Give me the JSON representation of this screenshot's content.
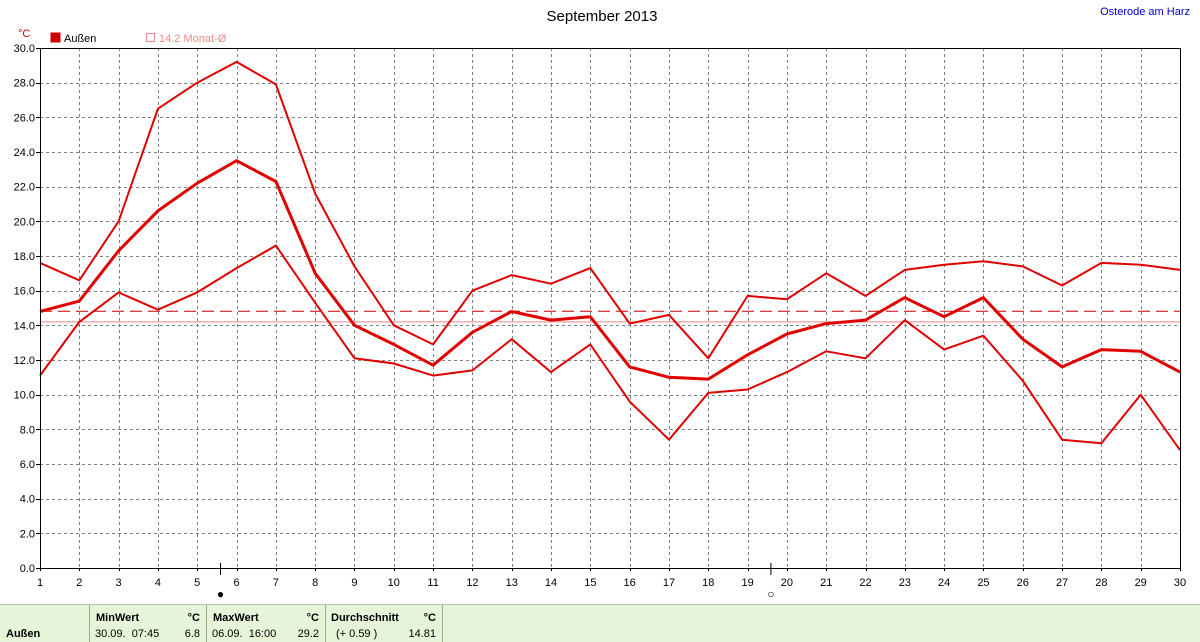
{
  "chart_data": {
    "type": "line",
    "title": "September 2013",
    "location": "Osterode am Harz",
    "ylabel": "°C",
    "ylim": [
      0,
      30
    ],
    "yticks": [
      "0.0",
      "2.0",
      "4.0",
      "6.0",
      "8.0",
      "10.0",
      "12.0",
      "14.0",
      "16.0",
      "18.0",
      "20.0",
      "22.0",
      "24.0",
      "26.0",
      "28.0",
      "30.0"
    ],
    "x": [
      1,
      2,
      3,
      4,
      5,
      6,
      7,
      8,
      9,
      10,
      11,
      12,
      13,
      14,
      15,
      16,
      17,
      18,
      19,
      20,
      21,
      22,
      23,
      24,
      25,
      26,
      27,
      28,
      29,
      30
    ],
    "xlim": [
      1,
      30
    ],
    "grid": true,
    "legend": [
      {
        "label": "Außen",
        "color": "#cc0000",
        "filled": true
      },
      {
        "label": "14.2 Monat-Ø",
        "color": "#ee8888",
        "filled": false
      }
    ],
    "series": [
      {
        "name": "Außen",
        "role": "max",
        "color": "#e00000",
        "values": [
          17.6,
          16.6,
          20.0,
          26.5,
          28.0,
          29.2,
          27.9,
          21.6,
          17.4,
          14.0,
          12.9,
          16.0,
          16.9,
          16.4,
          17.3,
          14.1,
          14.6,
          12.1,
          15.7,
          15.5,
          17.0,
          15.7,
          17.2,
          17.5,
          17.7,
          17.4,
          16.3,
          17.6,
          17.5,
          17.2
        ]
      },
      {
        "name": "Außen",
        "role": "mean",
        "color": "#e00000",
        "values": [
          14.8,
          15.4,
          18.3,
          20.6,
          22.2,
          23.5,
          22.3,
          17.0,
          14.0,
          12.9,
          11.7,
          13.6,
          14.8,
          14.3,
          14.5,
          11.6,
          11.0,
          10.9,
          12.3,
          13.5,
          14.1,
          14.3,
          15.6,
          14.5,
          15.6,
          13.2,
          11.6,
          12.6,
          12.5,
          11.3
        ]
      },
      {
        "name": "Außen",
        "role": "min",
        "color": "#e00000",
        "values": [
          11.1,
          14.2,
          15.9,
          14.9,
          15.9,
          17.3,
          18.6,
          15.3,
          12.1,
          11.8,
          11.1,
          11.4,
          13.2,
          11.3,
          12.9,
          9.6,
          7.4,
          10.1,
          10.3,
          11.3,
          12.5,
          12.1,
          14.3,
          12.6,
          13.4,
          10.8,
          7.4,
          7.2,
          10.0,
          6.8
        ]
      }
    ],
    "reference_lines": [
      {
        "label": "14.2 Monat-Ø",
        "value": 14.2,
        "color": "#ee8888",
        "style": "solid"
      },
      {
        "value": 14.81,
        "color": "#cc0000",
        "style": "dashed"
      }
    ],
    "markers": [
      {
        "day": 6,
        "symbol": "●"
      },
      {
        "day": 20,
        "symbol": "○"
      }
    ]
  },
  "stats": {
    "row_label": "Außen",
    "min": {
      "header": "MinWert",
      "unit": "°C",
      "date_time": "30.09.  07:45",
      "value": "6.8"
    },
    "max": {
      "header": "MaxWert",
      "unit": "°C",
      "date_time": "06.09.  16:00",
      "value": "29.2"
    },
    "avg": {
      "header": "Durchschnitt",
      "unit": "°C",
      "delta": "(+ 0.59 )",
      "value": "14.81"
    }
  }
}
